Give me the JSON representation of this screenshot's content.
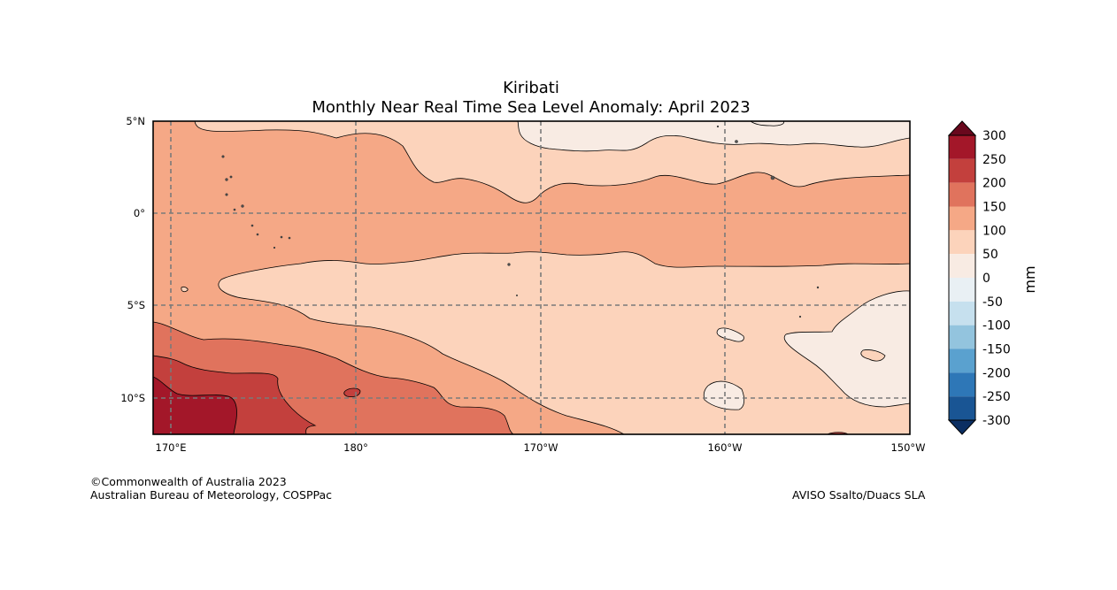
{
  "figure": {
    "title": "Kiribati",
    "subtitle": "Monthly Near Real Time Sea Level Anomaly: April 2023"
  },
  "map": {
    "region": "Kiribati",
    "lat_range": [
      -12,
      5
    ],
    "lon_range": [
      169,
      210
    ],
    "lat_ticks": [
      {
        "value": 5,
        "label": "5°N"
      },
      {
        "value": 0,
        "label": "0°"
      },
      {
        "value": -5,
        "label": "5°S"
      },
      {
        "value": -10,
        "label": "10°S"
      }
    ],
    "lon_ticks": [
      {
        "value": 170,
        "label": "170°E"
      },
      {
        "value": 180,
        "label": "180°"
      },
      {
        "value": 190,
        "label": "170°W"
      },
      {
        "value": 200,
        "label": "160°W"
      },
      {
        "value": 210,
        "label": "150°W"
      }
    ],
    "gridlines": true,
    "gridline_style": "dashed"
  },
  "colorbar": {
    "unit": "mm",
    "ticks": [
      "300",
      "250",
      "200",
      "150",
      "100",
      "50",
      "0",
      "-50",
      "-100",
      "-150",
      "-200",
      "-250",
      "-300"
    ],
    "colors_top_to_bottom": [
      "#a31729",
      "#c3403d",
      "#e0735d",
      "#f5a886",
      "#fcd3bb",
      "#f8ebe3",
      "#e9f0f4",
      "#c6e0ee",
      "#93c4de",
      "#5aa1cf",
      "#2e77b7",
      "#195594"
    ],
    "over_color": "#69081d",
    "under_color": "#0b2e62"
  },
  "chart_data": {
    "type": "heatmap",
    "title": "Kiribati",
    "subtitle": "Monthly Near Real Time Sea Level Anomaly: April 2023",
    "unit": "mm",
    "levels": [
      -300,
      -250,
      -200,
      -150,
      -100,
      -50,
      0,
      50,
      100,
      150,
      200,
      250,
      300
    ],
    "xlim": [
      169,
      210
    ],
    "ylim": [
      -12,
      5
    ]
  },
  "credits": {
    "left_line1": "©Commonwealth of Australia 2023",
    "left_line2": "Australian Bureau of Meteorology, COSPPac",
    "right": "AVISO Ssalto/Duacs SLA"
  }
}
